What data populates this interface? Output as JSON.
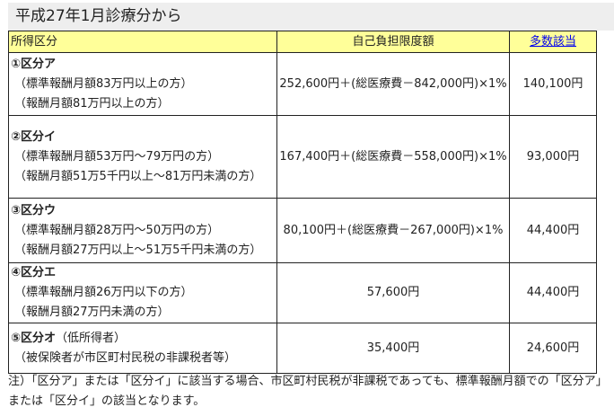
{
  "heading": "平成27年1月診療分から",
  "table": {
    "headers": [
      "所得区分",
      "自己負担限度額",
      "多数該当"
    ],
    "rows": [
      {
        "title": "①区分ア",
        "title_extra": "",
        "lines": [
          "（標準報酬月額83万円以上の方）",
          "（報酬月額81万円以上の方）"
        ],
        "limit": "252,600円＋(総医療費－842,000円)×1%",
        "multi": "140,100円"
      },
      {
        "title": "②区分イ",
        "title_extra": "",
        "lines": [
          "（標準報酬月額53万円～79万円の方）",
          "（報酬月額51万5千円以上～81万円未満の方）"
        ],
        "limit": "167,400円＋(総医療費－558,000円)×1%",
        "multi": "93,000円"
      },
      {
        "title": "③区分ウ",
        "title_extra": "",
        "lines": [
          "（標準報酬月額28万円～50万円の方）",
          "（報酬月額27万円以上～51万5千円未満の方）"
        ],
        "limit": "80,100円＋(総医療費－267,000円)×1%",
        "multi": "44,400円"
      },
      {
        "title": "④区分エ",
        "title_extra": "",
        "lines": [
          "（標準報酬月額26万円以下の方）",
          "（報酬月額27万円未満の方）"
        ],
        "limit": "57,600円",
        "multi": "44,400円"
      },
      {
        "title": "⑤区分オ",
        "title_extra": "（低所得者）",
        "lines": [
          "（被保険者が市区町村民税の非課税者等）"
        ],
        "limit": "35,400円",
        "multi": "24,600円"
      }
    ]
  },
  "note": "注）「区分ア」または「区分イ」に該当する場合、市区町村民税が非課税であっても、標準報酬月額での「区分ア」または「区分イ」の該当となります。"
}
